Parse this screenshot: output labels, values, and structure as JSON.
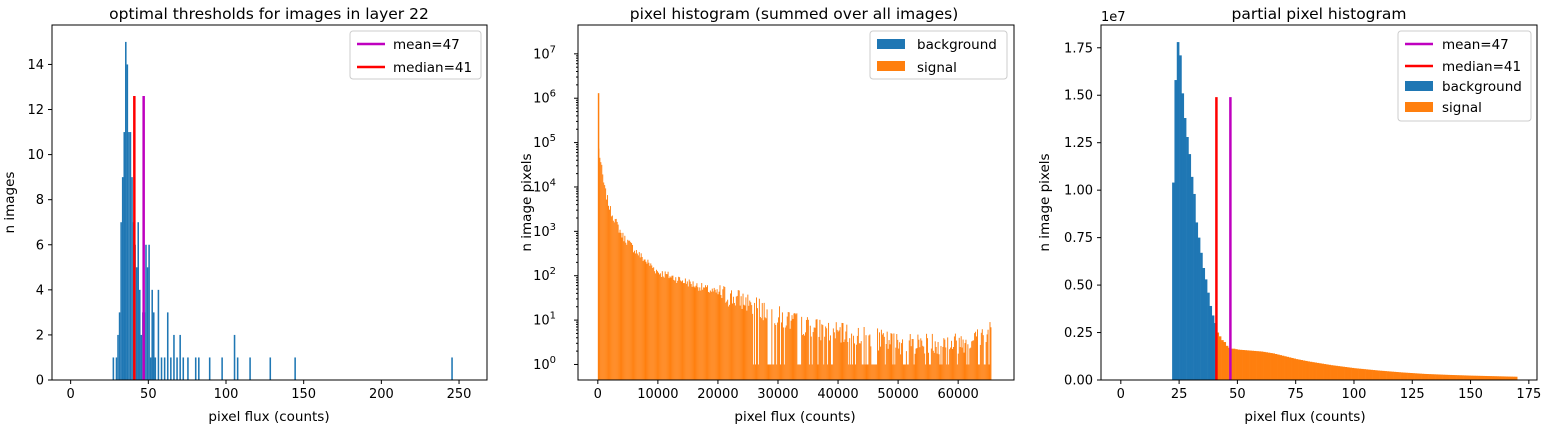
{
  "colors": {
    "background": "#1f77b4",
    "signal": "#ff7f0e",
    "mean": "#bf00bf",
    "median": "#ff0000"
  },
  "chart_data": [
    {
      "type": "bar",
      "title": "optimal thresholds for images in layer 22",
      "xlabel": "pixel flux (counts)",
      "ylabel": "n images",
      "xlim": [
        -12,
        268
      ],
      "ylim": [
        0,
        15.75
      ],
      "xticks": [
        0,
        50,
        100,
        150,
        200,
        250
      ],
      "yticks": [
        0,
        2,
        4,
        6,
        8,
        10,
        12,
        14
      ],
      "legend": "top-right",
      "bins": [
        {
          "x": 27,
          "v": 1
        },
        {
          "x": 29,
          "v": 1
        },
        {
          "x": 30,
          "v": 2
        },
        {
          "x": 31,
          "v": 3
        },
        {
          "x": 32,
          "v": 7
        },
        {
          "x": 33,
          "v": 9
        },
        {
          "x": 34,
          "v": 11
        },
        {
          "x": 35,
          "v": 15
        },
        {
          "x": 36,
          "v": 14
        },
        {
          "x": 37,
          "v": 11
        },
        {
          "x": 38,
          "v": 11
        },
        {
          "x": 39,
          "v": 9
        },
        {
          "x": 40,
          "v": 7
        },
        {
          "x": 41,
          "v": 6
        },
        {
          "x": 42,
          "v": 5
        },
        {
          "x": 43,
          "v": 7
        },
        {
          "x": 44,
          "v": 4
        },
        {
          "x": 45,
          "v": 2
        },
        {
          "x": 46,
          "v": 3
        },
        {
          "x": 47,
          "v": 3
        },
        {
          "x": 48,
          "v": 6
        },
        {
          "x": 49,
          "v": 5
        },
        {
          "x": 50,
          "v": 6
        },
        {
          "x": 51,
          "v": 1
        },
        {
          "x": 52,
          "v": 4
        },
        {
          "x": 53,
          "v": 3
        },
        {
          "x": 54,
          "v": 1
        },
        {
          "x": 56,
          "v": 4
        },
        {
          "x": 58,
          "v": 1
        },
        {
          "x": 60,
          "v": 1
        },
        {
          "x": 62,
          "v": 3
        },
        {
          "x": 64,
          "v": 1
        },
        {
          "x": 66,
          "v": 2
        },
        {
          "x": 68,
          "v": 1
        },
        {
          "x": 70,
          "v": 2
        },
        {
          "x": 72,
          "v": 1
        },
        {
          "x": 75,
          "v": 1
        },
        {
          "x": 80,
          "v": 1
        },
        {
          "x": 82,
          "v": 1
        },
        {
          "x": 89,
          "v": 1
        },
        {
          "x": 97,
          "v": 1
        },
        {
          "x": 105,
          "v": 2
        },
        {
          "x": 107,
          "v": 1
        },
        {
          "x": 115,
          "v": 1
        },
        {
          "x": 128,
          "v": 1
        },
        {
          "x": 144,
          "v": 1
        },
        {
          "x": 245,
          "v": 1
        }
      ],
      "lines": [
        {
          "name": "mean=47",
          "x": 47,
          "y": 12.6,
          "color": "#bf00bf"
        },
        {
          "name": "median=41",
          "x": 41,
          "y": 12.6,
          "color": "#ff0000"
        }
      ]
    },
    {
      "type": "bar",
      "title": "pixel histogram (summed over all images)",
      "xlabel": "pixel flux (counts)",
      "ylabel": "n image pixels",
      "yscale": "log",
      "xlim": [
        -3300,
        69300
      ],
      "ylim_log10": [
        -0.35,
        7.65
      ],
      "xticks": [
        0,
        10000,
        20000,
        30000,
        40000,
        50000,
        60000
      ],
      "yticks": [
        "10^0",
        "10^1",
        "10^2",
        "10^3",
        "10^4",
        "10^5",
        "10^6",
        "10^7"
      ],
      "legend": "top-right",
      "series": [
        {
          "name": "background",
          "color": "#1f77b4"
        },
        {
          "name": "signal",
          "color": "#ff7f0e"
        }
      ],
      "envelope": [
        {
          "x": 0,
          "y": 1300000
        },
        {
          "x": 100,
          "y": 70000
        },
        {
          "x": 500,
          "y": 30000
        },
        {
          "x": 1000,
          "y": 10000
        },
        {
          "x": 2000,
          "y": 3000
        },
        {
          "x": 4000,
          "y": 800
        },
        {
          "x": 7000,
          "y": 280
        },
        {
          "x": 10000,
          "y": 120
        },
        {
          "x": 15000,
          "y": 70
        },
        {
          "x": 20000,
          "y": 40
        },
        {
          "x": 25000,
          "y": 25
        },
        {
          "x": 30000,
          "y": 12
        },
        {
          "x": 35000,
          "y": 7
        },
        {
          "x": 40000,
          "y": 5
        },
        {
          "x": 45000,
          "y": 4
        },
        {
          "x": 50000,
          "y": 3
        },
        {
          "x": 55000,
          "y": 3
        },
        {
          "x": 60000,
          "y": 3
        },
        {
          "x": 65000,
          "y": 5
        },
        {
          "x": 65535,
          "y": 10
        }
      ]
    },
    {
      "type": "bar",
      "title": "partial pixel histogram",
      "xlabel": "pixel flux (counts)",
      "ylabel": "n image pixels",
      "offset_text": "1e7",
      "xlim": [
        -8.5,
        178.5
      ],
      "ylim": [
        0,
        18700000
      ],
      "xticks": [
        0,
        25,
        50,
        75,
        100,
        125,
        150,
        175
      ],
      "yticks": [
        "0.00",
        "0.25",
        "0.50",
        "0.75",
        "1.00",
        "1.25",
        "1.50",
        "1.75"
      ],
      "legend": "top-right",
      "series": [
        {
          "name": "background",
          "color": "#1f77b4",
          "x": [
            22,
            23,
            24,
            25,
            26,
            27,
            28,
            29,
            30,
            31,
            32,
            33,
            34,
            35,
            36,
            37,
            38,
            39,
            40
          ],
          "values": [
            10400000,
            15800000,
            17800000,
            17100000,
            15100000,
            13800000,
            12800000,
            11900000,
            10700000,
            9800000,
            8300000,
            7500000,
            6700000,
            5900000,
            5300000,
            4600000,
            3900000,
            3400000,
            3000000
          ]
        },
        {
          "name": "signal",
          "color": "#ff7f0e",
          "x": [
            41,
            42,
            43,
            44,
            45,
            46,
            47,
            48,
            50,
            55,
            60,
            65,
            70,
            75,
            80,
            90,
            100,
            110,
            120,
            130,
            140,
            150,
            160,
            170
          ],
          "values": [
            2500000,
            2300000,
            2100000,
            2000000,
            1800000,
            1700000,
            1650000,
            1650000,
            1600000,
            1550000,
            1500000,
            1400000,
            1250000,
            1100000,
            980000,
            780000,
            620000,
            500000,
            400000,
            320000,
            270000,
            230000,
            200000,
            170000
          ]
        }
      ],
      "lines": [
        {
          "name": "mean=47",
          "x": 47,
          "y": 14900000,
          "color": "#bf00bf"
        },
        {
          "name": "median=41",
          "x": 41,
          "y": 14900000,
          "color": "#ff0000"
        }
      ]
    }
  ]
}
